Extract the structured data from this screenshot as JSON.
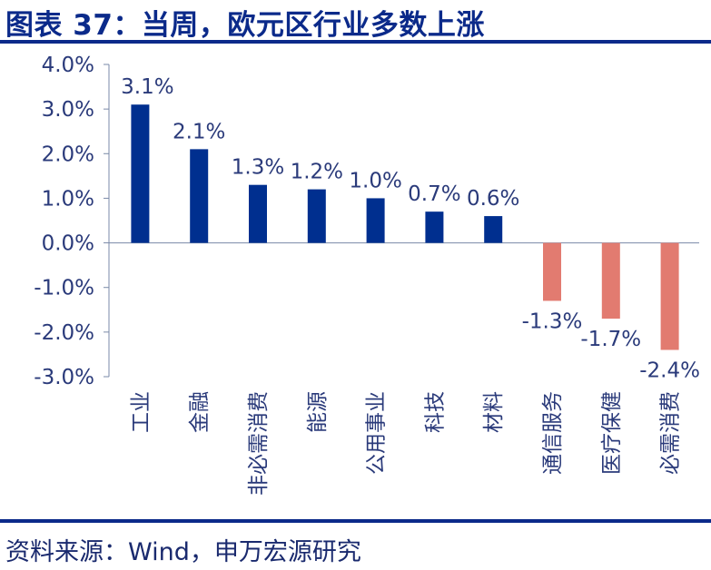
{
  "title": "图表 37：当周，欧元区行业多数上涨",
  "source": "资料来源：Wind，申万宏源研究",
  "colors": {
    "positive": "#002f8f",
    "negative": "#e27b70",
    "text": "#2a3a7a",
    "accent": "#0b2a8a"
  },
  "chart_data": {
    "type": "bar",
    "categories": [
      "工业",
      "金融",
      "非必需消费",
      "能源",
      "公用事业",
      "科技",
      "材料",
      "通信服务",
      "医疗保健",
      "必需消费"
    ],
    "values": [
      3.1,
      2.1,
      1.3,
      1.2,
      1.0,
      0.7,
      0.6,
      -1.3,
      -1.7,
      -2.4
    ],
    "data_labels": [
      "3.1%",
      "2.1%",
      "1.3%",
      "1.2%",
      "1.0%",
      "0.7%",
      "0.6%",
      "-1.3%",
      "-1.7%",
      "-2.4%"
    ],
    "ylim": [
      -3.0,
      4.0
    ],
    "yticks": [
      "4.0%",
      "3.0%",
      "2.0%",
      "1.0%",
      "0.0%",
      "-1.0%",
      "-2.0%",
      "-3.0%"
    ],
    "ytick_values": [
      4,
      3,
      2,
      1,
      0,
      -1,
      -2,
      -3
    ],
    "grid": false,
    "legend": "none"
  }
}
